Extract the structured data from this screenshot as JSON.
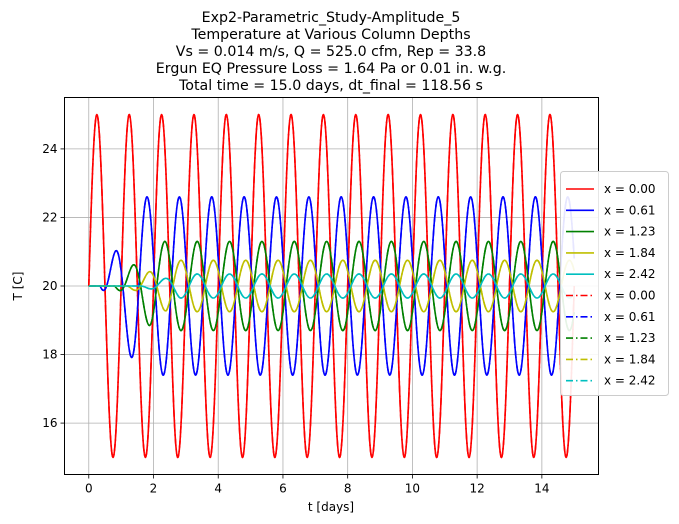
{
  "chart_data": {
    "type": "line",
    "title_lines": [
      "Exp2-Parametric_Study-Amplitude_5",
      "Temperature at Various Column Depths",
      "Vs = 0.014 m/s, Q = 525.0 cfm, Rep = 33.8",
      "Ergun EQ Pressure Loss = 1.64 Pa or 0.01 in. w.g.",
      "Total time = 15.0 days, dt_final = 118.56 s"
    ],
    "xlabel": "t [days]",
    "ylabel": "T [C]",
    "xlim": [
      -0.75,
      15.75
    ],
    "ylim": [
      14.5,
      25.5
    ],
    "xticks": [
      0,
      2,
      4,
      6,
      8,
      10,
      12,
      14
    ],
    "yticks": [
      16,
      18,
      20,
      22,
      24
    ],
    "grid": true,
    "legend_position": "outside-right",
    "t_range": [
      0,
      15
    ],
    "period_days": 1,
    "baseline": 20,
    "series": [
      {
        "name": "x = 0.00",
        "color": "#ff0000",
        "style": "solid",
        "amplitude": 5.0,
        "lag_days": 0.0,
        "onset_days": 0.0
      },
      {
        "name": "x = 0.61",
        "color": "#0000ff",
        "style": "solid",
        "amplitude": 2.6,
        "lag_days": 0.55,
        "onset_days": 0.35
      },
      {
        "name": "x = 1.23",
        "color": "#008000",
        "style": "solid",
        "amplitude": 1.3,
        "lag_days": 1.1,
        "onset_days": 0.8
      },
      {
        "name": "x = 1.84",
        "color": "#bfbf00",
        "style": "solid",
        "amplitude": 0.75,
        "lag_days": 1.6,
        "onset_days": 1.2
      },
      {
        "name": "x = 2.42",
        "color": "#00bfbf",
        "style": "solid",
        "amplitude": 0.35,
        "lag_days": 2.1,
        "onset_days": 1.6
      },
      {
        "name": "x = 0.00",
        "color": "#ff0000",
        "style": "dashdot",
        "amplitude": 5.0,
        "lag_days": 0.0,
        "onset_days": 0.0
      },
      {
        "name": "x = 0.61",
        "color": "#0000ff",
        "style": "dashdot",
        "amplitude": 2.6,
        "lag_days": 0.55,
        "onset_days": 0.35
      },
      {
        "name": "x = 1.23",
        "color": "#008000",
        "style": "dashdot",
        "amplitude": 1.3,
        "lag_days": 1.1,
        "onset_days": 0.8
      },
      {
        "name": "x = 1.84",
        "color": "#bfbf00",
        "style": "dashdot",
        "amplitude": 0.75,
        "lag_days": 1.6,
        "onset_days": 1.2
      },
      {
        "name": "x = 2.42",
        "color": "#00bfbf",
        "style": "dashdot",
        "amplitude": 0.35,
        "lag_days": 2.1,
        "onset_days": 1.6
      }
    ]
  }
}
